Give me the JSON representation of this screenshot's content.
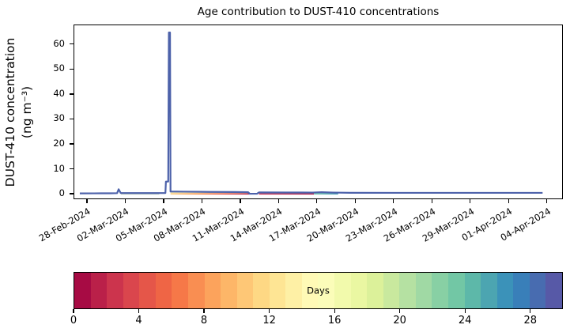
{
  "figure": {
    "background": "#ffffff",
    "axis_color": "#000000",
    "line_color": "#4d62aa",
    "ylabel_line1": "DUST-410 concentration",
    "ylabel_line2": "(ng m⁻³)"
  },
  "chart_data": {
    "type": "area",
    "stacked": true,
    "title": "Age contribution to DUST-410 concentrations",
    "xlabel": "",
    "ylabel": "DUST-410 concentration (ng m⁻³)",
    "grid": false,
    "legend": "horizontal discrete colorbar below plot",
    "colormap": "Spectral (30 discrete age bins)",
    "ylim": [
      -2.2,
      67.9
    ],
    "yticks": [
      0,
      10,
      20,
      30,
      40,
      50,
      60
    ],
    "xlim_days_from_28feb": [
      -1.05,
      37.25
    ],
    "xtick_day_offsets": [
      0,
      3,
      6,
      9,
      12,
      15,
      18,
      21,
      24,
      27,
      30,
      33,
      36
    ],
    "xtick_labels": [
      "28-Feb-2024",
      "02-Mar-2024",
      "05-Mar-2024",
      "08-Mar-2024",
      "11-Mar-2024",
      "14-Mar-2024",
      "17-Mar-2024",
      "20-Mar-2024",
      "23-Mar-2024",
      "26-Mar-2024",
      "29-Mar-2024",
      "01-Apr-2024",
      "04-Apr-2024"
    ],
    "peak": {
      "date": "06-Mar-2024",
      "value_ng_m3": 65
    },
    "secondary_peak": {
      "date": "01-Mar-2024",
      "value_ng_m3": 2
    },
    "baseline_total_ng_m3": 0.7,
    "total_line": {
      "days_from_28feb": [
        -0.62,
        0.5,
        1.8,
        2.3,
        2.42,
        2.58,
        3.5,
        5.0,
        6.08,
        6.12,
        6.3,
        6.35,
        6.44,
        6.48,
        7.5,
        9.5,
        11.5,
        12.55,
        12.68,
        13.25,
        13.4,
        15.5,
        17.6,
        18.3,
        19.2,
        20.5,
        24.0,
        28.0,
        32.0,
        35.6
      ],
      "values": [
        0.45,
        0.48,
        0.5,
        0.55,
        2.1,
        0.62,
        0.6,
        0.6,
        0.62,
        5.2,
        5.2,
        65.0,
        65.0,
        1.2,
        1.15,
        1.05,
        1.0,
        0.95,
        0.32,
        0.32,
        0.85,
        0.82,
        0.8,
        0.95,
        0.8,
        0.7,
        0.68,
        0.68,
        0.68,
        0.68
      ]
    },
    "bands": [
      {
        "name": "old-age-sage-tint",
        "from_day": 2.6,
        "to_day": 5.6,
        "height": 0.28,
        "colors": [
          "#b6c7b2",
          "#a9bfb7"
        ]
      },
      {
        "name": "mid-age-pale-yellow",
        "from_day": 6.48,
        "to_day": 12.65,
        "height": 0.95,
        "colors": [
          "#fbf0b4",
          "#fbf0b4"
        ]
      },
      {
        "name": "young-dust-warm",
        "from_day": 6.48,
        "to_day": 12.65,
        "height": 0.5,
        "colors": [
          "#fdd088",
          "#f89456",
          "#e4524b",
          "#ae1a4a"
        ]
      },
      {
        "name": "mid-age-pale-yellow-2",
        "from_day": 13.4,
        "to_day": 17.7,
        "height": 0.7,
        "colors": [
          "#f9efd2",
          "#f9efd2"
        ]
      },
      {
        "name": "young-dust-crimson",
        "from_day": 13.4,
        "to_day": 17.7,
        "height": 0.45,
        "colors": [
          "#c62a4d",
          "#a31146"
        ]
      },
      {
        "name": "mid-age-teal",
        "from_day": 17.7,
        "to_day": 19.6,
        "height": 0.85,
        "colors": [
          "#7cc6b0",
          "#4f9fb8"
        ]
      }
    ],
    "colorbar": {
      "label": "Days",
      "range": [
        0,
        30
      ],
      "ticks": [
        0,
        4,
        8,
        12,
        16,
        20,
        24,
        28
      ],
      "segment_colors": [
        "#a70b44",
        "#ba2049",
        "#cc344d",
        "#da464d",
        "#e55649",
        "#ef6545",
        "#f67848",
        "#f98e52",
        "#fca35c",
        "#fdb668",
        "#fec776",
        "#fed884",
        "#fee594",
        "#fef0a5",
        "#fffab6",
        "#fbfdb9",
        "#f2faac",
        "#eaf7a2",
        "#dcf19a",
        "#c9e99e",
        "#b5e1a2",
        "#a0d9a4",
        "#88d0a4",
        "#72c7a5",
        "#5db8a9",
        "#4ca5b1",
        "#3b92b9",
        "#397fb9",
        "#486cb0",
        "#5759a7"
      ]
    }
  }
}
